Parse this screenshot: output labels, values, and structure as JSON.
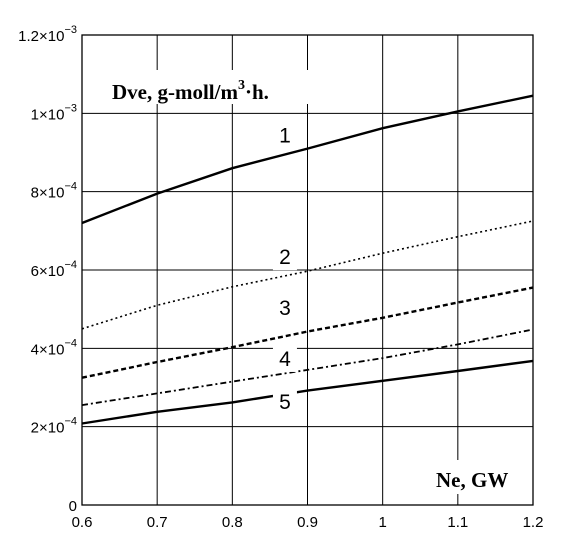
{
  "chart_data": {
    "type": "line",
    "ylabel_parts": [
      "Dve, g-moll/m",
      "3",
      "·h."
    ],
    "xlabel": "Ne, GW",
    "xlim": [
      0.6,
      1.2
    ],
    "ylim": [
      0,
      0.0012
    ],
    "grid": true,
    "x_ticks": [
      "0.6",
      "0.7",
      "0.8",
      "0.9",
      "1",
      "1.1",
      "1.2"
    ],
    "y_ticks": [
      {
        "value": 0,
        "mant": "0",
        "exp": ""
      },
      {
        "value": 0.0002,
        "mant": "2×10",
        "exp": "−4"
      },
      {
        "value": 0.0004,
        "mant": "4×10",
        "exp": "−4"
      },
      {
        "value": 0.0006,
        "mant": "6×10",
        "exp": "−4"
      },
      {
        "value": 0.0008,
        "mant": "8×10",
        "exp": "−4"
      },
      {
        "value": 0.001,
        "mant": "1×10",
        "exp": "−3"
      },
      {
        "value": 0.0012,
        "mant": "1.2×10",
        "exp": "−3"
      }
    ],
    "x": [
      0.6,
      0.7,
      0.8,
      0.9,
      1.0,
      1.1,
      1.2
    ],
    "series": [
      {
        "label": "1",
        "style": "solid",
        "label_x": 0.87,
        "label_y": 0.000925,
        "values": [
          0.00072,
          0.000795,
          0.00086,
          0.00091,
          0.000962,
          0.001005,
          0.001045
        ]
      },
      {
        "label": "2",
        "style": "dotted",
        "label_x": 0.87,
        "label_y": 0.000615,
        "values": [
          0.00045,
          0.00051,
          0.000557,
          0.000597,
          0.000643,
          0.000685,
          0.000725
        ]
      },
      {
        "label": "3",
        "style": "dashed",
        "label_x": 0.87,
        "label_y": 0.000485,
        "values": [
          0.000325,
          0.000365,
          0.000403,
          0.000443,
          0.000478,
          0.000517,
          0.000555
        ]
      },
      {
        "label": "4",
        "style": "dashdot",
        "label_x": 0.87,
        "label_y": 0.000355,
        "values": [
          0.000255,
          0.000285,
          0.000315,
          0.000345,
          0.000375,
          0.00041,
          0.000448
        ]
      },
      {
        "label": "5",
        "style": "solid",
        "label_x": 0.87,
        "label_y": 0.000245,
        "values": [
          0.000208,
          0.000238,
          0.000262,
          0.000292,
          0.000317,
          0.000342,
          0.000368
        ]
      }
    ]
  }
}
